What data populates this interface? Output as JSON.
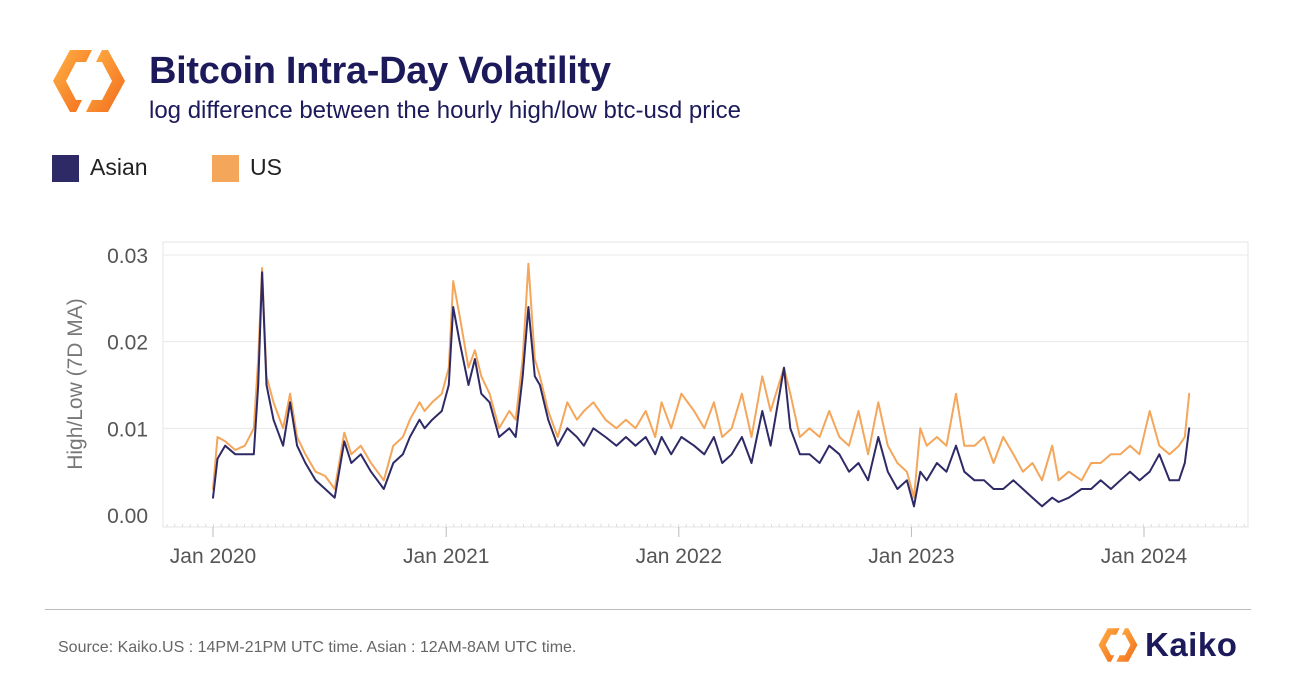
{
  "header": {
    "title": "Bitcoin Intra-Day Volatility",
    "subtitle": "log difference between the hourly high/low btc-usd price"
  },
  "legend": {
    "items": [
      {
        "label": "Asian",
        "color": "#2e2a66"
      },
      {
        "label": "US",
        "color": "#f4a65b"
      }
    ]
  },
  "footer": {
    "source": "Source: Kaiko.US : 14PM-21PM UTC time. Asian : 12AM-8AM UTC time.",
    "brand": "Kaiko"
  },
  "colors": {
    "title": "#1c1a5a",
    "asian": "#2e2a66",
    "us": "#f4a65b",
    "logo_orange": "#f7941d"
  },
  "chart_data": {
    "type": "line",
    "title": "Bitcoin Intra-Day Volatility",
    "subtitle": "log difference between the hourly high/low btc-usd price",
    "xlabel": "",
    "ylabel": "High/Low (7D MA)",
    "xlim": [
      "2020-01-01",
      "2024-03-31"
    ],
    "ylim": [
      0,
      0.03
    ],
    "yticks": [
      0.0,
      0.01,
      0.02,
      0.03
    ],
    "ytick_labels": [
      "0.00",
      "0.01",
      "0.02",
      "0.03"
    ],
    "xtick_labels": [
      "Jan 2020",
      "Jan 2021",
      "Jan 2022",
      "Jan 2023",
      "Jan 2024"
    ],
    "xticks": [
      "2020-01-01",
      "2021-01-01",
      "2022-01-01",
      "2023-01-01",
      "2024-01-01"
    ],
    "grid": true,
    "legend": "top-left",
    "x": [
      "2020-01-01",
      "2020-01-08",
      "2020-01-20",
      "2020-02-05",
      "2020-02-20",
      "2020-03-05",
      "2020-03-12",
      "2020-03-18",
      "2020-03-25",
      "2020-04-05",
      "2020-04-20",
      "2020-05-01",
      "2020-05-12",
      "2020-05-25",
      "2020-06-10",
      "2020-06-25",
      "2020-07-10",
      "2020-07-25",
      "2020-08-05",
      "2020-08-20",
      "2020-09-05",
      "2020-09-15",
      "2020-09-25",
      "2020-10-10",
      "2020-10-25",
      "2020-11-05",
      "2020-11-20",
      "2020-11-28",
      "2020-12-10",
      "2020-12-25",
      "2021-01-05",
      "2021-01-12",
      "2021-01-22",
      "2021-02-05",
      "2021-02-15",
      "2021-02-25",
      "2021-03-10",
      "2021-03-25",
      "2021-04-10",
      "2021-04-20",
      "2021-05-01",
      "2021-05-10",
      "2021-05-20",
      "2021-05-28",
      "2021-06-10",
      "2021-06-25",
      "2021-07-10",
      "2021-07-25",
      "2021-08-05",
      "2021-08-20",
      "2021-09-08",
      "2021-09-25",
      "2021-10-10",
      "2021-10-25",
      "2021-11-10",
      "2021-11-25",
      "2021-12-05",
      "2021-12-20",
      "2022-01-05",
      "2022-01-25",
      "2022-02-10",
      "2022-02-25",
      "2022-03-10",
      "2022-03-25",
      "2022-04-10",
      "2022-04-25",
      "2022-05-12",
      "2022-05-25",
      "2022-06-15",
      "2022-06-25",
      "2022-07-10",
      "2022-07-25",
      "2022-08-10",
      "2022-08-25",
      "2022-09-10",
      "2022-09-25",
      "2022-10-10",
      "2022-10-25",
      "2022-11-10",
      "2022-11-25",
      "2022-12-10",
      "2022-12-25",
      "2023-01-05",
      "2023-01-15",
      "2023-01-25",
      "2023-02-10",
      "2023-02-25",
      "2023-03-12",
      "2023-03-25",
      "2023-04-10",
      "2023-04-25",
      "2023-05-10",
      "2023-05-25",
      "2023-06-10",
      "2023-06-25",
      "2023-07-10",
      "2023-07-25",
      "2023-08-10",
      "2023-08-20",
      "2023-09-05",
      "2023-09-25",
      "2023-10-10",
      "2023-10-25",
      "2023-11-10",
      "2023-11-25",
      "2023-12-10",
      "2023-12-25",
      "2024-01-10",
      "2024-01-25",
      "2024-02-10",
      "2024-02-25",
      "2024-03-05",
      "2024-03-12"
    ],
    "series": [
      {
        "name": "Asian",
        "color": "#2e2a66",
        "values": [
          0.002,
          0.0065,
          0.008,
          0.007,
          0.007,
          0.007,
          0.015,
          0.028,
          0.015,
          0.011,
          0.008,
          0.013,
          0.008,
          0.006,
          0.004,
          0.003,
          0.002,
          0.0085,
          0.006,
          0.007,
          0.005,
          0.004,
          0.003,
          0.006,
          0.007,
          0.009,
          0.011,
          0.01,
          0.011,
          0.012,
          0.015,
          0.024,
          0.02,
          0.015,
          0.018,
          0.014,
          0.013,
          0.009,
          0.01,
          0.009,
          0.016,
          0.024,
          0.016,
          0.015,
          0.011,
          0.008,
          0.01,
          0.009,
          0.008,
          0.01,
          0.009,
          0.008,
          0.009,
          0.008,
          0.009,
          0.007,
          0.009,
          0.007,
          0.009,
          0.008,
          0.007,
          0.009,
          0.006,
          0.007,
          0.009,
          0.006,
          0.012,
          0.008,
          0.017,
          0.01,
          0.007,
          0.007,
          0.006,
          0.008,
          0.007,
          0.005,
          0.006,
          0.004,
          0.009,
          0.005,
          0.003,
          0.004,
          0.001,
          0.005,
          0.004,
          0.006,
          0.005,
          0.008,
          0.005,
          0.004,
          0.004,
          0.003,
          0.003,
          0.004,
          0.003,
          0.002,
          0.001,
          0.002,
          0.0015,
          0.002,
          0.003,
          0.003,
          0.004,
          0.003,
          0.004,
          0.005,
          0.004,
          0.005,
          0.007,
          0.004,
          0.004,
          0.006,
          0.01
        ]
      },
      {
        "name": "US",
        "color": "#f4a65b",
        "values": [
          0.003,
          0.009,
          0.0085,
          0.0075,
          0.008,
          0.01,
          0.018,
          0.0285,
          0.016,
          0.013,
          0.01,
          0.014,
          0.009,
          0.007,
          0.005,
          0.0045,
          0.003,
          0.0095,
          0.007,
          0.008,
          0.006,
          0.005,
          0.004,
          0.008,
          0.009,
          0.011,
          0.013,
          0.012,
          0.013,
          0.014,
          0.017,
          0.027,
          0.023,
          0.017,
          0.019,
          0.016,
          0.014,
          0.01,
          0.012,
          0.011,
          0.018,
          0.029,
          0.018,
          0.016,
          0.012,
          0.009,
          0.013,
          0.011,
          0.012,
          0.013,
          0.011,
          0.01,
          0.011,
          0.01,
          0.012,
          0.009,
          0.013,
          0.01,
          0.014,
          0.012,
          0.01,
          0.013,
          0.009,
          0.01,
          0.014,
          0.009,
          0.016,
          0.012,
          0.017,
          0.014,
          0.009,
          0.01,
          0.009,
          0.012,
          0.009,
          0.008,
          0.012,
          0.007,
          0.013,
          0.008,
          0.006,
          0.005,
          0.002,
          0.01,
          0.008,
          0.009,
          0.008,
          0.014,
          0.008,
          0.008,
          0.009,
          0.006,
          0.009,
          0.007,
          0.005,
          0.006,
          0.004,
          0.008,
          0.004,
          0.005,
          0.004,
          0.006,
          0.006,
          0.007,
          0.007,
          0.008,
          0.007,
          0.012,
          0.008,
          0.007,
          0.008,
          0.009,
          0.014
        ]
      }
    ]
  }
}
